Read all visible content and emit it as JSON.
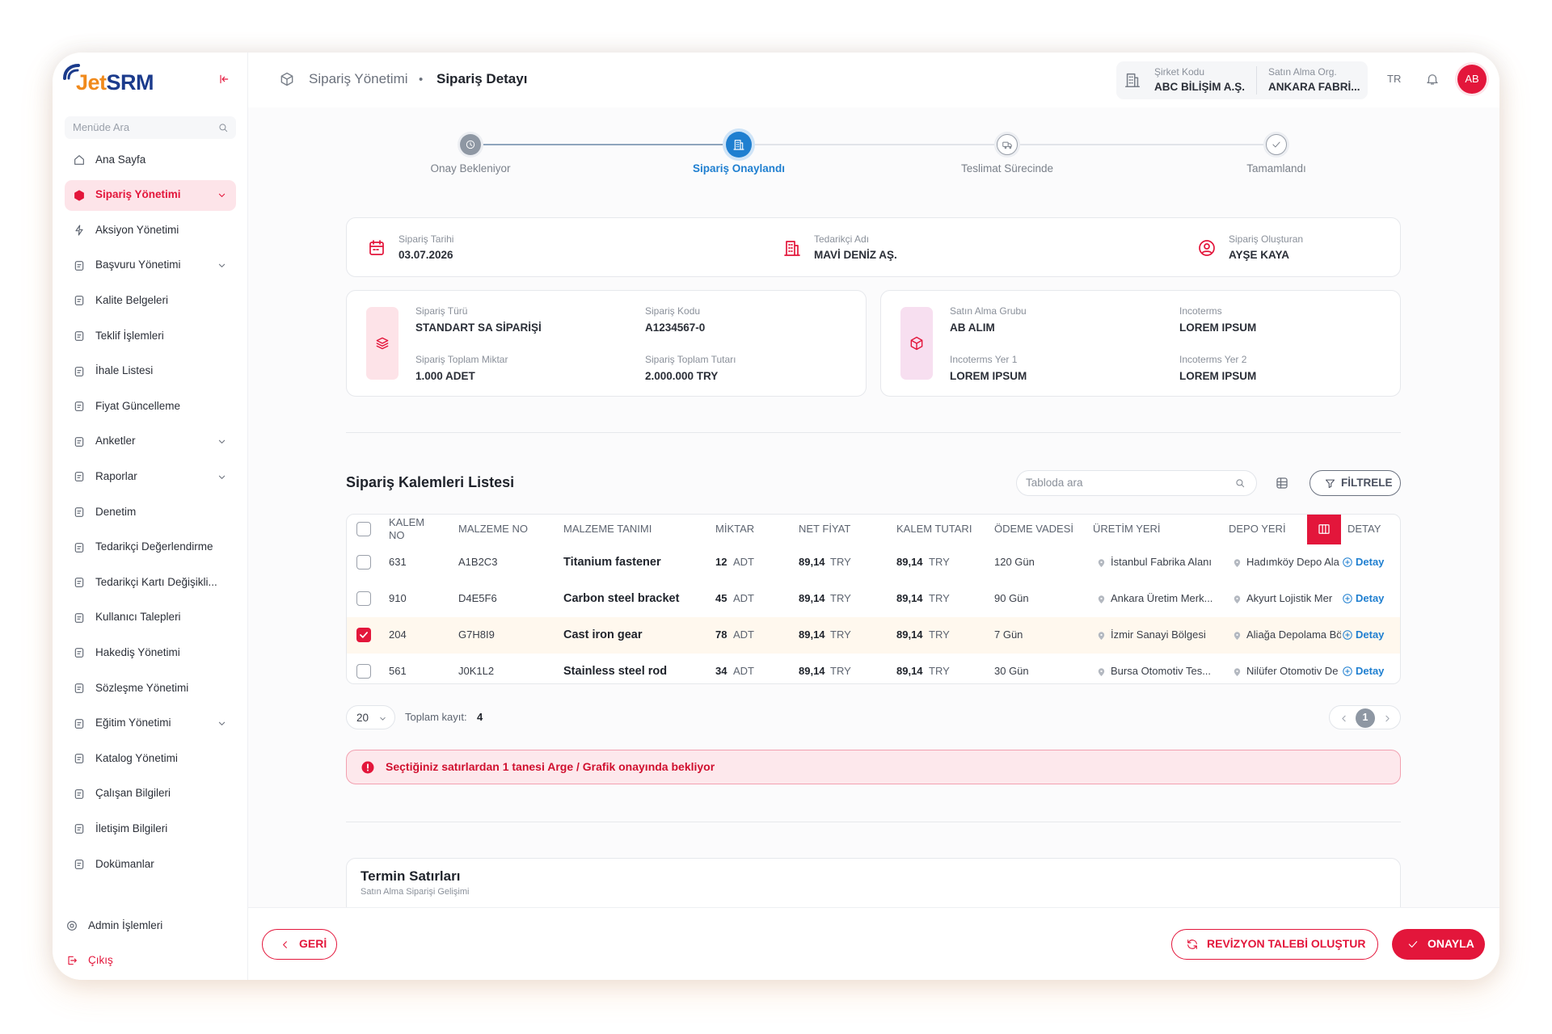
{
  "sidebar": {
    "logo_prefix": "Jet",
    "logo_suffix": "SRM",
    "search_placeholder": "Menüde Ara",
    "menu": [
      {
        "label": "Ana Sayfa"
      },
      {
        "label": "Sipariş Yönetimi",
        "expandable": true,
        "active": true
      },
      {
        "label": "Aksiyon Yönetimi"
      },
      {
        "label": "Başvuru Yönetimi",
        "expandable": true
      },
      {
        "label": "Kalite Belgeleri"
      },
      {
        "label": "Teklif İşlemleri"
      },
      {
        "label": "İhale Listesi"
      },
      {
        "label": "Fiyat Güncelleme"
      },
      {
        "label": "Anketler",
        "expandable": true
      },
      {
        "label": "Raporlar",
        "expandable": true
      },
      {
        "label": "Denetim"
      },
      {
        "label": "Tedarikçi Değerlendirme"
      },
      {
        "label": "Tedarikçi Kartı Değişikli..."
      },
      {
        "label": "Kullanıcı Talepleri"
      },
      {
        "label": "Hakediş Yönetimi"
      },
      {
        "label": "Sözleşme Yönetimi"
      },
      {
        "label": "Eğitim Yönetimi",
        "expandable": true
      },
      {
        "label": "Katalog Yönetimi"
      },
      {
        "label": "Çalışan Bilgileri"
      },
      {
        "label": "İletişim Bilgileri"
      },
      {
        "label": "Dokümanlar"
      }
    ],
    "footer": [
      {
        "label": "Admin İşlemleri"
      },
      {
        "label": "Çıkış"
      }
    ]
  },
  "header": {
    "breadcrumb": [
      "Sipariş Yönetimi",
      "•",
      "Sipariş Detayı"
    ],
    "company_code_label": "Şirket Kodu",
    "company_code": "ABC BİLİŞİM A.Ş.",
    "org_label": "Satın Alma Org.",
    "org": "ANKARA FABRİ...",
    "language": "TR",
    "avatar": "AB"
  },
  "stepper": {
    "active_step": 1,
    "steps": [
      "Onay Bekleniyor",
      "Sipariş Onaylandı",
      "Teslimat Sürecinde",
      "Tamamlandı"
    ]
  },
  "summary": [
    {
      "label": "Sipariş Tarihi",
      "value": "03.07.2026"
    },
    {
      "label": "Tedarikçi Adı",
      "value": "MAVİ DENİZ AŞ."
    },
    {
      "label": "Sipariş Oluşturan",
      "value": "AYŞE KAYA"
    }
  ],
  "details": [
    {
      "fields": [
        {
          "label": "Sipariş Türü",
          "value": "STANDART SA SİPARİŞİ"
        },
        {
          "label": "Sipariş Kodu",
          "value": "A1234567-0"
        },
        {
          "label": "Sipariş Toplam Miktar",
          "value": "1.000 ADET"
        },
        {
          "label": "Sipariş Toplam Tutarı",
          "value": "2.000.000 TRY"
        }
      ]
    },
    {
      "fields": [
        {
          "label": "Satın Alma Grubu",
          "value": "AB ALIM"
        },
        {
          "label": "Incoterms",
          "value": "LOREM IPSUM"
        },
        {
          "label": "Incoterms Yer 1",
          "value": "LOREM IPSUM"
        },
        {
          "label": "Incoterms Yer 2",
          "value": "LOREM IPSUM"
        }
      ]
    }
  ],
  "items": {
    "title": "Sipariş Kalemleri Listesi",
    "search_placeholder": "Tabloda ara",
    "filter_button": "FİLTRELE",
    "columns": [
      "KALEM NO",
      "MALZEME NO",
      "MALZEME TANIMI",
      "MİKTAR",
      "NET FİYAT",
      "KALEM TUTARI",
      "ÖDEME VADESİ",
      "ÜRETİM YERİ",
      "DEPO YERİ",
      "DETAY"
    ],
    "rows": [
      {
        "cells": [
          "631",
          "A1B2C3",
          "Titanium fastener",
          "12",
          "ADT",
          "89,14",
          "TRY",
          "89,14",
          "TRY",
          "120 Gün",
          "İstanbul Fabrika Alanı",
          "Hadımköy Depo Ala",
          "Detay"
        ],
        "checked": false
      },
      {
        "cells": [
          "910",
          "D4E5F6",
          "Carbon steel bracket",
          "45",
          "ADT",
          "89,14",
          "TRY",
          "89,14",
          "TRY",
          "90 Gün",
          "Ankara Üretim Merk...",
          "Akyurt Lojistik Mer",
          "Detay"
        ],
        "checked": false
      },
      {
        "cells": [
          "204",
          "G7H8I9",
          "Cast iron gear",
          "78",
          "ADT",
          "89,14",
          "TRY",
          "89,14",
          "TRY",
          "7 Gün",
          "İzmir Sanayi Bölgesi",
          "Aliağa Depolama Bö",
          "Detay"
        ],
        "checked": true
      },
      {
        "cells": [
          "561",
          "J0K1L2",
          "Stainless steel rod",
          "34",
          "ADT",
          "89,14",
          "TRY",
          "89,14",
          "TRY",
          "30 Gün",
          "Bursa Otomotiv Tes...",
          "Nilüfer Otomotiv De",
          "Detay"
        ],
        "checked": false
      }
    ],
    "page_size": "20",
    "total_label": "Toplam kayıt:",
    "total": "4",
    "page": "1"
  },
  "alert": "Seçtiğiniz satırlardan 1 tanesi Arge / Grafik onayında bekliyor",
  "termin": {
    "title": "Termin Satırları",
    "subtitle": "Satın Alma Siparişi Gelişimi"
  },
  "footer": {
    "back": "GERİ",
    "revision": "REVİZYON TALEBİ OLUŞTUR",
    "approve": "ONAYLA"
  }
}
